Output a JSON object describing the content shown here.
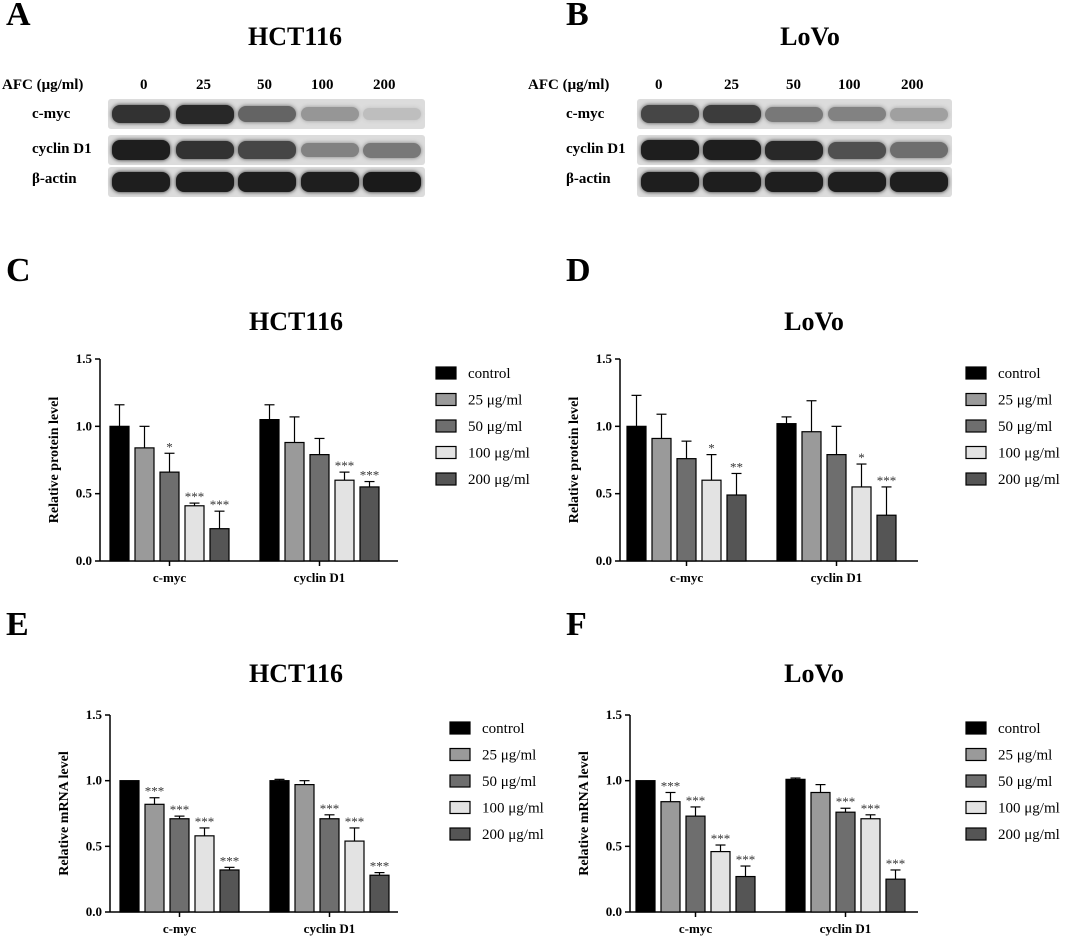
{
  "panels": {
    "A": {
      "letter": "A",
      "title": "HCT116"
    },
    "B": {
      "letter": "B",
      "title": "LoVo"
    },
    "C": {
      "letter": "C"
    },
    "D": {
      "letter": "D"
    },
    "E": {
      "letter": "E"
    },
    "F": {
      "letter": "F"
    }
  },
  "blots": {
    "treatment_label": "AFC (μg/ml)",
    "doses": [
      "0",
      "25",
      "50",
      "100",
      "200"
    ],
    "rows": [
      "c-myc",
      "cyclin D1",
      "β-actin"
    ],
    "intensity": {
      "HCT116": {
        "c-myc": [
          0.85,
          0.9,
          0.6,
          0.35,
          0.15
        ],
        "cyclin D1": [
          0.95,
          0.85,
          0.75,
          0.45,
          0.5
        ],
        "β-actin": [
          0.95,
          0.95,
          0.95,
          0.95,
          0.97
        ]
      },
      "LoVo": {
        "c-myc": [
          0.75,
          0.8,
          0.5,
          0.45,
          0.3
        ],
        "cyclin D1": [
          0.95,
          0.95,
          0.9,
          0.7,
          0.55
        ],
        "β-actin": [
          0.95,
          0.95,
          0.95,
          0.95,
          0.95
        ]
      }
    }
  },
  "chart_data": [
    {
      "id": "C",
      "type": "bar",
      "title": "HCT116",
      "ylabel": "Relative protein level",
      "categories": [
        "c-myc",
        "cyclin D1"
      ],
      "ylim": [
        0,
        1.5
      ],
      "yticks": [
        "0.0",
        "0.5",
        "1.0",
        "1.5"
      ],
      "series": [
        {
          "name": "control",
          "color": "#000000",
          "values": [
            1.0,
            1.05
          ],
          "errors": [
            0.16,
            0.11
          ],
          "sig": [
            "",
            ""
          ]
        },
        {
          "name": "25 μg/ml",
          "color": "#9a9a9a",
          "values": [
            0.84,
            0.88
          ],
          "errors": [
            0.16,
            0.19
          ],
          "sig": [
            "",
            ""
          ]
        },
        {
          "name": "50 μg/ml",
          "color": "#6e6e6e",
          "values": [
            0.66,
            0.79
          ],
          "errors": [
            0.14,
            0.12
          ],
          "sig": [
            "*",
            ""
          ]
        },
        {
          "name": "100 μg/ml",
          "color": "#e3e3e3",
          "values": [
            0.41,
            0.6
          ],
          "errors": [
            0.02,
            0.06
          ],
          "sig": [
            "***",
            "***"
          ]
        },
        {
          "name": "200 μg/ml",
          "color": "#555555",
          "values": [
            0.24,
            0.55
          ],
          "errors": [
            0.13,
            0.04
          ],
          "sig": [
            "***",
            "***"
          ]
        }
      ]
    },
    {
      "id": "D",
      "type": "bar",
      "title": "LoVo",
      "ylabel": "Relative protein level",
      "categories": [
        "c-myc",
        "cyclin D1"
      ],
      "ylim": [
        0,
        1.5
      ],
      "yticks": [
        "0.0",
        "0.5",
        "1.0",
        "1.5"
      ],
      "series": [
        {
          "name": "control",
          "color": "#000000",
          "values": [
            1.0,
            1.02
          ],
          "errors": [
            0.23,
            0.05
          ],
          "sig": [
            "",
            ""
          ]
        },
        {
          "name": "25 μg/ml",
          "color": "#9a9a9a",
          "values": [
            0.91,
            0.96
          ],
          "errors": [
            0.18,
            0.23
          ],
          "sig": [
            "",
            ""
          ]
        },
        {
          "name": "50 μg/ml",
          "color": "#6e6e6e",
          "values": [
            0.76,
            0.79
          ],
          "errors": [
            0.13,
            0.21
          ],
          "sig": [
            "",
            ""
          ]
        },
        {
          "name": "100 μg/ml",
          "color": "#e3e3e3",
          "values": [
            0.6,
            0.55
          ],
          "errors": [
            0.19,
            0.17
          ],
          "sig": [
            "*",
            "*"
          ]
        },
        {
          "name": "200 μg/ml",
          "color": "#555555",
          "values": [
            0.49,
            0.34
          ],
          "errors": [
            0.16,
            0.21
          ],
          "sig": [
            "**",
            "***"
          ]
        }
      ]
    },
    {
      "id": "E",
      "type": "bar",
      "title": "HCT116",
      "ylabel": "Relative mRNA level",
      "categories": [
        "c-myc",
        "cyclin D1"
      ],
      "ylim": [
        0,
        1.5
      ],
      "yticks": [
        "0.0",
        "0.5",
        "1.0",
        "1.5"
      ],
      "series": [
        {
          "name": "control",
          "color": "#000000",
          "values": [
            1.0,
            1.0
          ],
          "errors": [
            0.0,
            0.01
          ],
          "sig": [
            "",
            ""
          ]
        },
        {
          "name": "25 μg/ml",
          "color": "#9a9a9a",
          "values": [
            0.82,
            0.97
          ],
          "errors": [
            0.05,
            0.03
          ],
          "sig": [
            "***",
            ""
          ]
        },
        {
          "name": "50 μg/ml",
          "color": "#6e6e6e",
          "values": [
            0.71,
            0.71
          ],
          "errors": [
            0.02,
            0.03
          ],
          "sig": [
            "***",
            "***"
          ]
        },
        {
          "name": "100 μg/ml",
          "color": "#e3e3e3",
          "values": [
            0.58,
            0.54
          ],
          "errors": [
            0.06,
            0.1
          ],
          "sig": [
            "***",
            "***"
          ]
        },
        {
          "name": "200 μg/ml",
          "color": "#555555",
          "values": [
            0.32,
            0.28
          ],
          "errors": [
            0.02,
            0.02
          ],
          "sig": [
            "***",
            "***"
          ]
        }
      ]
    },
    {
      "id": "F",
      "type": "bar",
      "title": "LoVo",
      "ylabel": "Relative mRNA level",
      "categories": [
        "c-myc",
        "cyclin D1"
      ],
      "ylim": [
        0,
        1.5
      ],
      "yticks": [
        "0.0",
        "0.5",
        "1.0",
        "1.5"
      ],
      "series": [
        {
          "name": "control",
          "color": "#000000",
          "values": [
            1.0,
            1.01
          ],
          "errors": [
            0.0,
            0.01
          ],
          "sig": [
            "",
            ""
          ]
        },
        {
          "name": "25 μg/ml",
          "color": "#9a9a9a",
          "values": [
            0.84,
            0.91
          ],
          "errors": [
            0.07,
            0.06
          ],
          "sig": [
            "***",
            ""
          ]
        },
        {
          "name": "50 μg/ml",
          "color": "#6e6e6e",
          "values": [
            0.73,
            0.76
          ],
          "errors": [
            0.07,
            0.03
          ],
          "sig": [
            "***",
            "***"
          ]
        },
        {
          "name": "100 μg/ml",
          "color": "#e3e3e3",
          "values": [
            0.46,
            0.71
          ],
          "errors": [
            0.05,
            0.03
          ],
          "sig": [
            "***",
            "***"
          ]
        },
        {
          "name": "200 μg/ml",
          "color": "#555555",
          "values": [
            0.27,
            0.25
          ],
          "errors": [
            0.08,
            0.07
          ],
          "sig": [
            "***",
            "***"
          ]
        }
      ]
    }
  ]
}
